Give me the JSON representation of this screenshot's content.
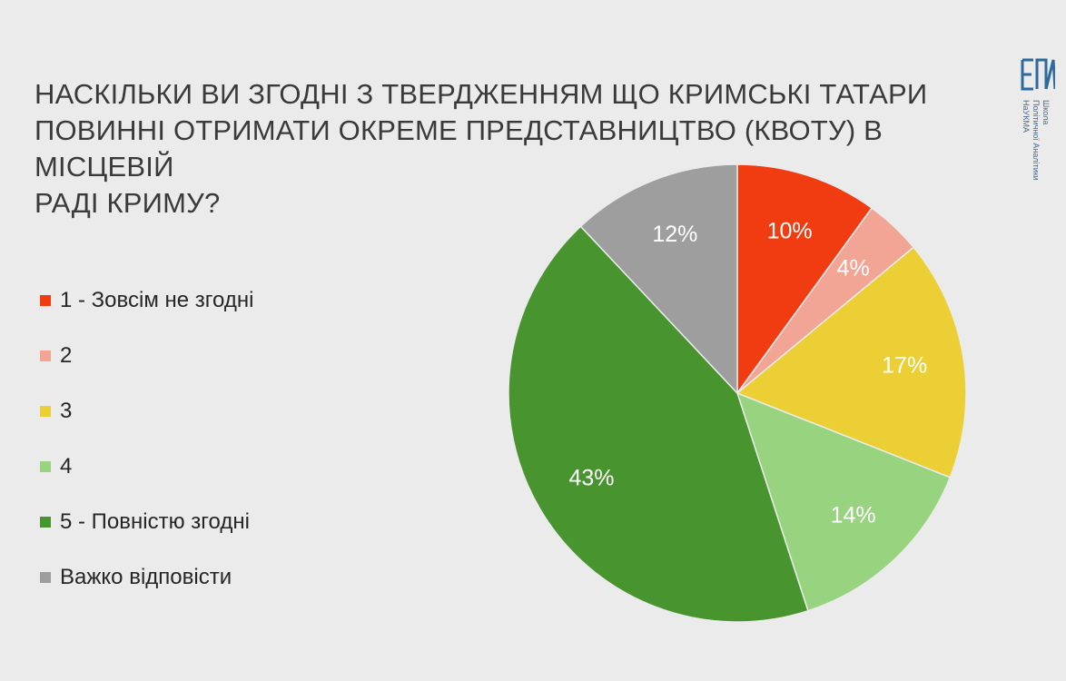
{
  "logo": {
    "lines": [
      "Школа",
      "Політичної Аналітики",
      "НаУКМА"
    ]
  },
  "chart_data": {
    "type": "pie",
    "title": [
      "НАСКІЛЬКИ ВИ ЗГОДНІ З ТВЕРДЖЕННЯМ ЩО КРИМСЬКІ ТАТАРИ",
      "ПОВИННІ ОТРИМАТИ ОКРЕМЕ ПРЕДСТАВНИЦТВО (КВОТУ) В МІСЦЕВІЙ",
      "РАДІ КРИМУ?"
    ],
    "legend_position": "left",
    "series": [
      {
        "categories": [
          "1 - Зовсім не згодні",
          "2",
          "3",
          "4",
          "5 - Повністю згодні",
          "Важко відповісти"
        ],
        "values": [
          10,
          4,
          17,
          14,
          43,
          12
        ],
        "labels": [
          "10%",
          "4%",
          "17%",
          "14%",
          "43%",
          "12%"
        ],
        "colors": [
          "#f13c12",
          "#f2a594",
          "#ebcf34",
          "#98d47f",
          "#48942f",
          "#9e9e9e"
        ]
      }
    ]
  }
}
